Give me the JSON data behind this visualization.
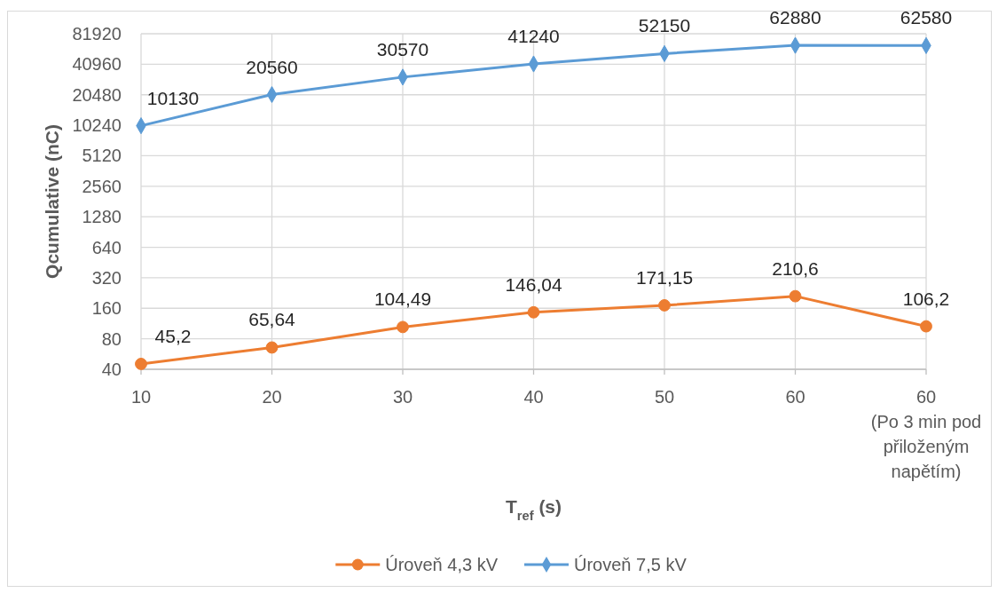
{
  "chart_data": {
    "type": "line",
    "xlabel": "T$_{ref}$ (s)",
    "ylabel": "Qcumulative (nC)",
    "categories": [
      "10",
      "20",
      "30",
      "40",
      "50",
      "60",
      "60\n(Po 3 min pod\npřiloženým\nnapětím)"
    ],
    "series": [
      {
        "name": "Úroveň 4,3 kV",
        "color": "#ed7d31",
        "marker": "circle",
        "values": [
          45.2,
          65.64,
          104.49,
          146.04,
          171.15,
          210.6,
          106.2
        ],
        "value_labels": [
          "45,2",
          "65,64",
          "104,49",
          "146,04",
          "171,15",
          "210,6",
          "106,2"
        ]
      },
      {
        "name": "Úroveň 7,5 kV",
        "color": "#5b9bd5",
        "marker": "diamond",
        "values": [
          10130,
          20560,
          30570,
          41240,
          52150,
          62880,
          62580
        ],
        "value_labels": [
          "10130",
          "20560",
          "30570",
          "41240",
          "52150",
          "62880",
          "62580"
        ]
      }
    ],
    "ylim": [
      40,
      81920
    ],
    "yticks": [
      40,
      80,
      160,
      320,
      640,
      1280,
      2560,
      5120,
      10240,
      20480,
      40960,
      81920
    ],
    "log": true,
    "grid": true,
    "legend": "bottom"
  }
}
